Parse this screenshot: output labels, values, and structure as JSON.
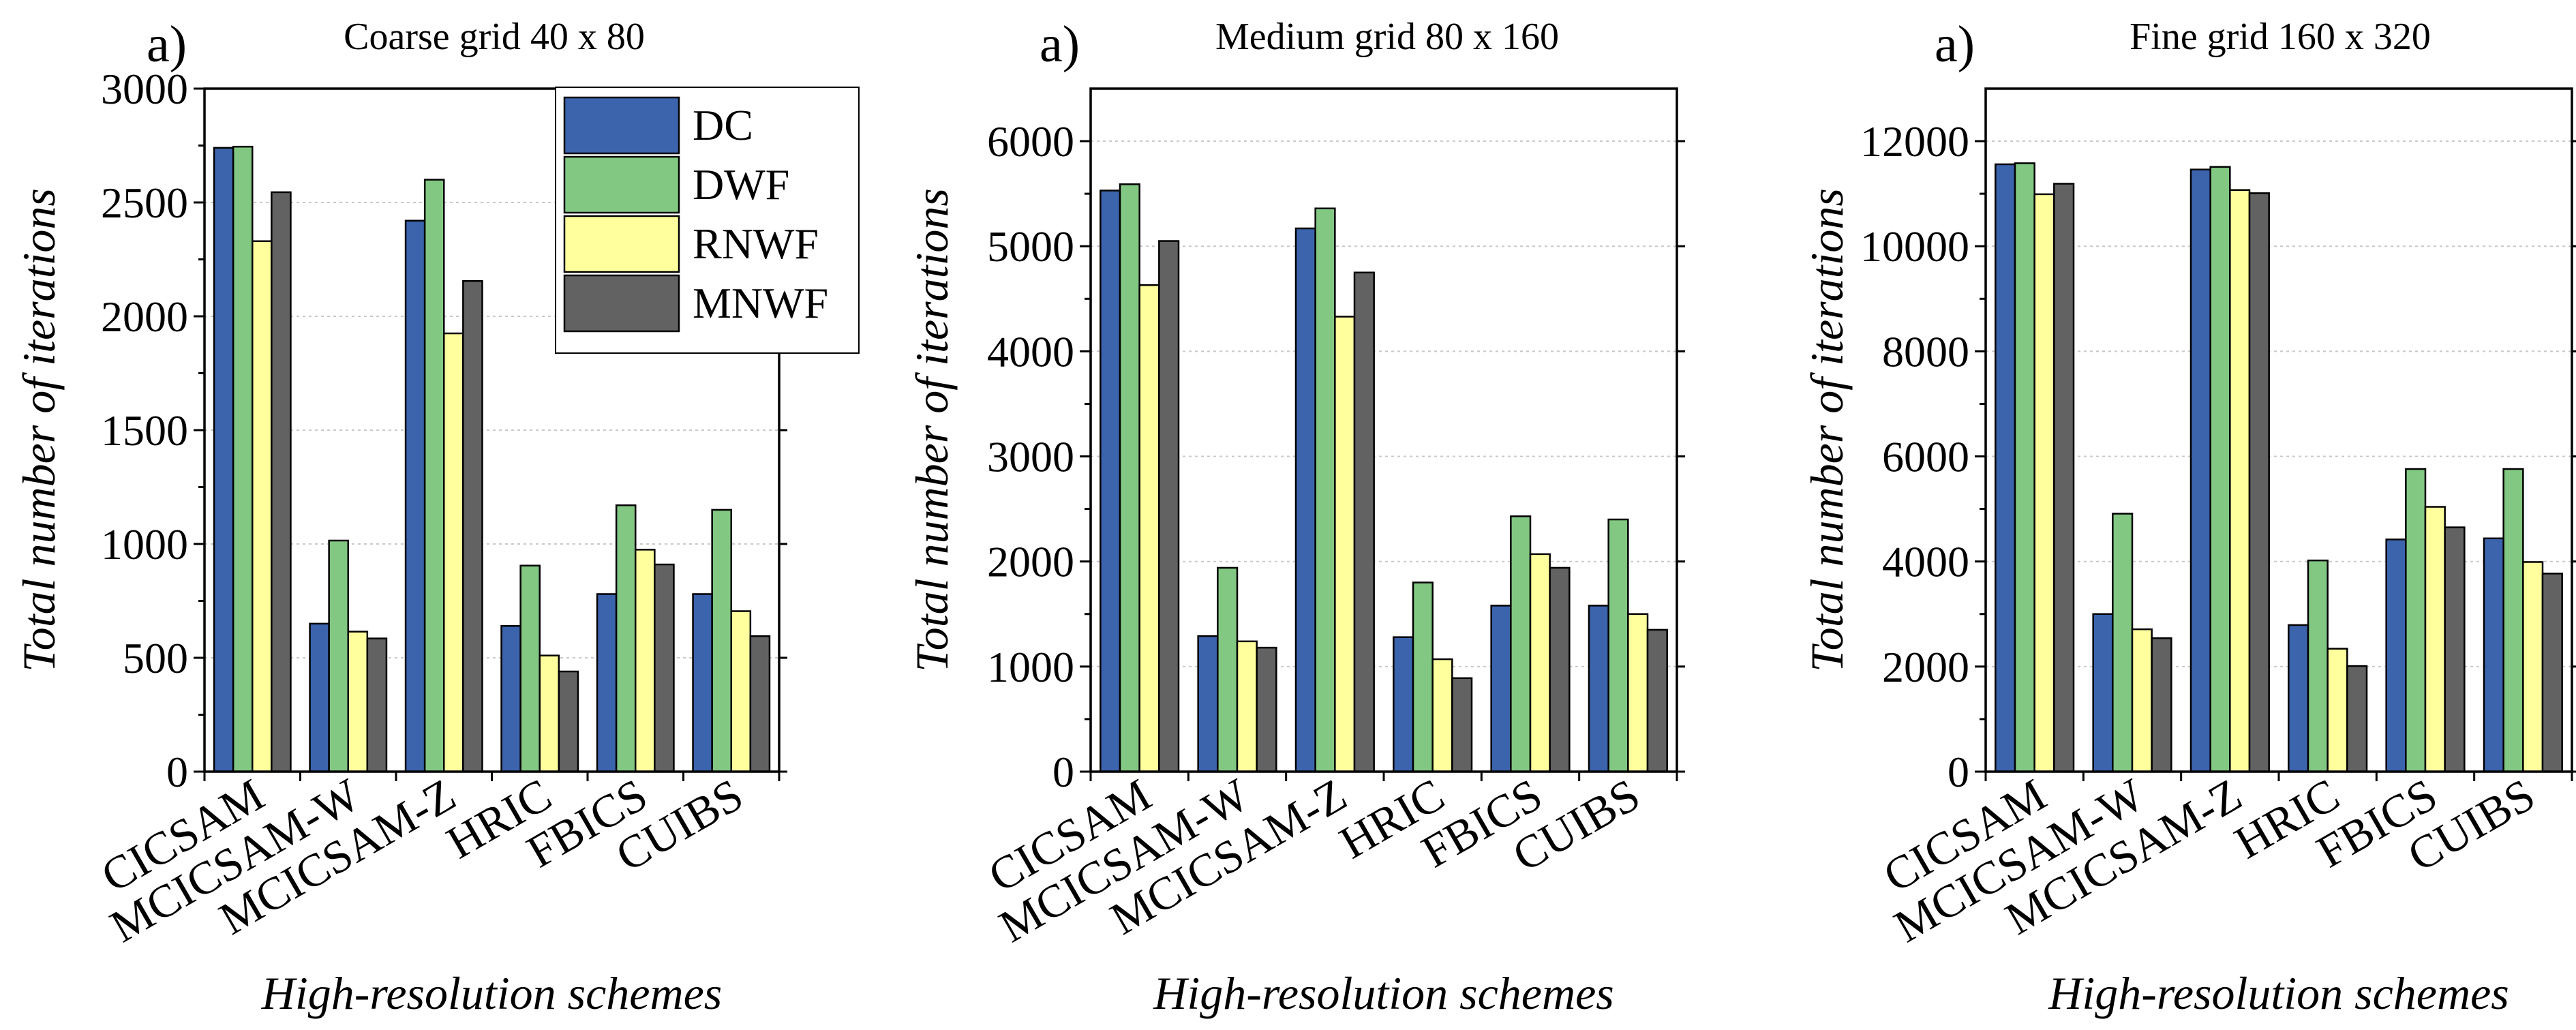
{
  "figure": {
    "panel_labels": [
      "a)",
      "a)",
      "a)"
    ]
  },
  "legend": {
    "entries": [
      {
        "name": "DC",
        "color": "#3b64ad"
      },
      {
        "name": "DWF",
        "color": "#82c882"
      },
      {
        "name": "RNWF",
        "color": "#ffff9e"
      },
      {
        "name": "MNWF",
        "color": "#626262"
      }
    ]
  },
  "chart_data": [
    {
      "type": "bar",
      "title": "Coarse grid 40 x 80",
      "panel_label": "a)",
      "xlabel": "High-resolution schemes",
      "ylabel": "Total number of iterations",
      "categories": [
        "CICSAM",
        "MCICSAM-W",
        "MCICSAM-Z",
        "HRIC",
        "FBICS",
        "CUIBS"
      ],
      "series": [
        {
          "name": "DC",
          "color": "#3b64ad",
          "values": [
            2740,
            650,
            2420,
            640,
            780,
            780
          ]
        },
        {
          "name": "DWF",
          "color": "#82c882",
          "values": [
            2745,
            1015,
            2600,
            905,
            1170,
            1150
          ]
        },
        {
          "name": "RNWF",
          "color": "#ffff9e",
          "values": [
            2330,
            615,
            1925,
            510,
            975,
            705
          ]
        },
        {
          "name": "MNWF",
          "color": "#626262",
          "values": [
            2545,
            585,
            2155,
            440,
            910,
            595
          ]
        }
      ],
      "ylim": [
        0,
        3000
      ],
      "yticks": [
        0,
        500,
        1000,
        1500,
        2000,
        2500,
        3000
      ],
      "grid": true,
      "legend_position": "top-right"
    },
    {
      "type": "bar",
      "title": "Medium grid 80 x 160",
      "panel_label": "a)",
      "xlabel": "High-resolution schemes",
      "ylabel": "Total number of iterations",
      "categories": [
        "CICSAM",
        "MCICSAM-W",
        "MCICSAM-Z",
        "HRIC",
        "FBICS",
        "CUIBS"
      ],
      "series": [
        {
          "name": "DC",
          "color": "#3b64ad",
          "values": [
            5530,
            1290,
            5170,
            1280,
            1580,
            1580
          ]
        },
        {
          "name": "DWF",
          "color": "#82c882",
          "values": [
            5590,
            1940,
            5360,
            1800,
            2430,
            2400
          ]
        },
        {
          "name": "RNWF",
          "color": "#ffff9e",
          "values": [
            4630,
            1240,
            4330,
            1070,
            2070,
            1500
          ]
        },
        {
          "name": "MNWF",
          "color": "#626262",
          "values": [
            5050,
            1180,
            4750,
            890,
            1940,
            1350
          ]
        }
      ],
      "ylim": [
        0,
        6500
      ],
      "yticks": [
        0,
        1000,
        2000,
        3000,
        4000,
        5000,
        6000
      ],
      "grid": true
    },
    {
      "type": "bar",
      "title": "Fine grid 160 x 320",
      "panel_label": "a)",
      "xlabel": "High-resolution schemes",
      "ylabel": "Total number of iterations",
      "categories": [
        "CICSAM",
        "MCICSAM-W",
        "MCICSAM-Z",
        "HRIC",
        "FBICS",
        "CUIBS"
      ],
      "series": [
        {
          "name": "DC",
          "color": "#3b64ad",
          "values": [
            11560,
            3000,
            11460,
            2790,
            4420,
            4440
          ]
        },
        {
          "name": "DWF",
          "color": "#82c882",
          "values": [
            11580,
            4910,
            11510,
            4020,
            5760,
            5760
          ]
        },
        {
          "name": "RNWF",
          "color": "#ffff9e",
          "values": [
            10990,
            2710,
            11070,
            2340,
            5040,
            3990
          ]
        },
        {
          "name": "MNWF",
          "color": "#626262",
          "values": [
            11190,
            2540,
            11010,
            2010,
            4650,
            3770
          ]
        }
      ],
      "ylim": [
        0,
        13000
      ],
      "yticks": [
        0,
        2000,
        4000,
        6000,
        8000,
        10000,
        12000
      ],
      "grid": true
    }
  ]
}
